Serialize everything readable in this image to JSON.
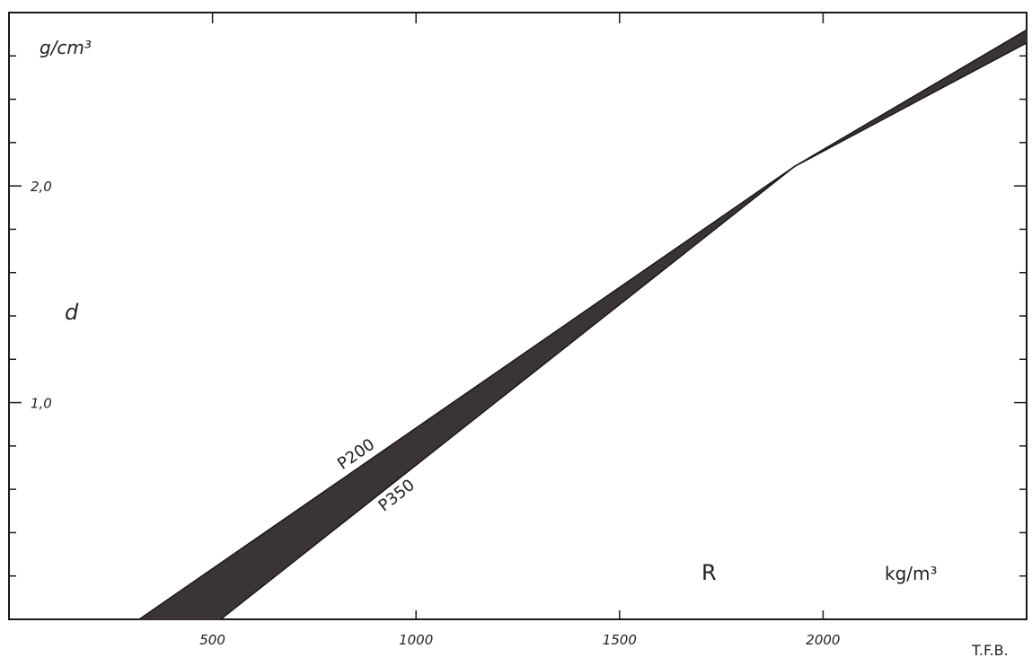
{
  "chart_data": {
    "type": "area",
    "xlabel": "R",
    "x_unit": "kg/m³",
    "ylabel": "d",
    "y_unit": "g/cm³",
    "xlim": [
      0,
      2500
    ],
    "ylim": [
      0,
      2.8
    ],
    "x_ticks": [
      500,
      1000,
      1500,
      2000
    ],
    "x_tick_labels": [
      "500",
      "1000",
      "1500",
      "2000"
    ],
    "y_ticks": [
      1.0,
      2.0
    ],
    "y_tick_labels": [
      "1,0",
      "2,0"
    ],
    "x_minor_ticks": [
      500,
      1000,
      1500,
      2000
    ],
    "y_minor_ticks": [
      0.2,
      0.4,
      0.6,
      0.8,
      1.0,
      1.2,
      1.4,
      1.6,
      1.8,
      2.0,
      2.2,
      2.4,
      2.6
    ],
    "grid": false,
    "series": [
      {
        "name": "P200",
        "x": [
          320,
          1930,
          2500
        ],
        "y": [
          0.0,
          2.09,
          2.72
        ]
      },
      {
        "name": "P350",
        "x": [
          520,
          1930,
          2500
        ],
        "y": [
          0.0,
          2.09,
          2.66
        ]
      }
    ],
    "band_color": "#3a3434",
    "credit": "T.F.B."
  }
}
